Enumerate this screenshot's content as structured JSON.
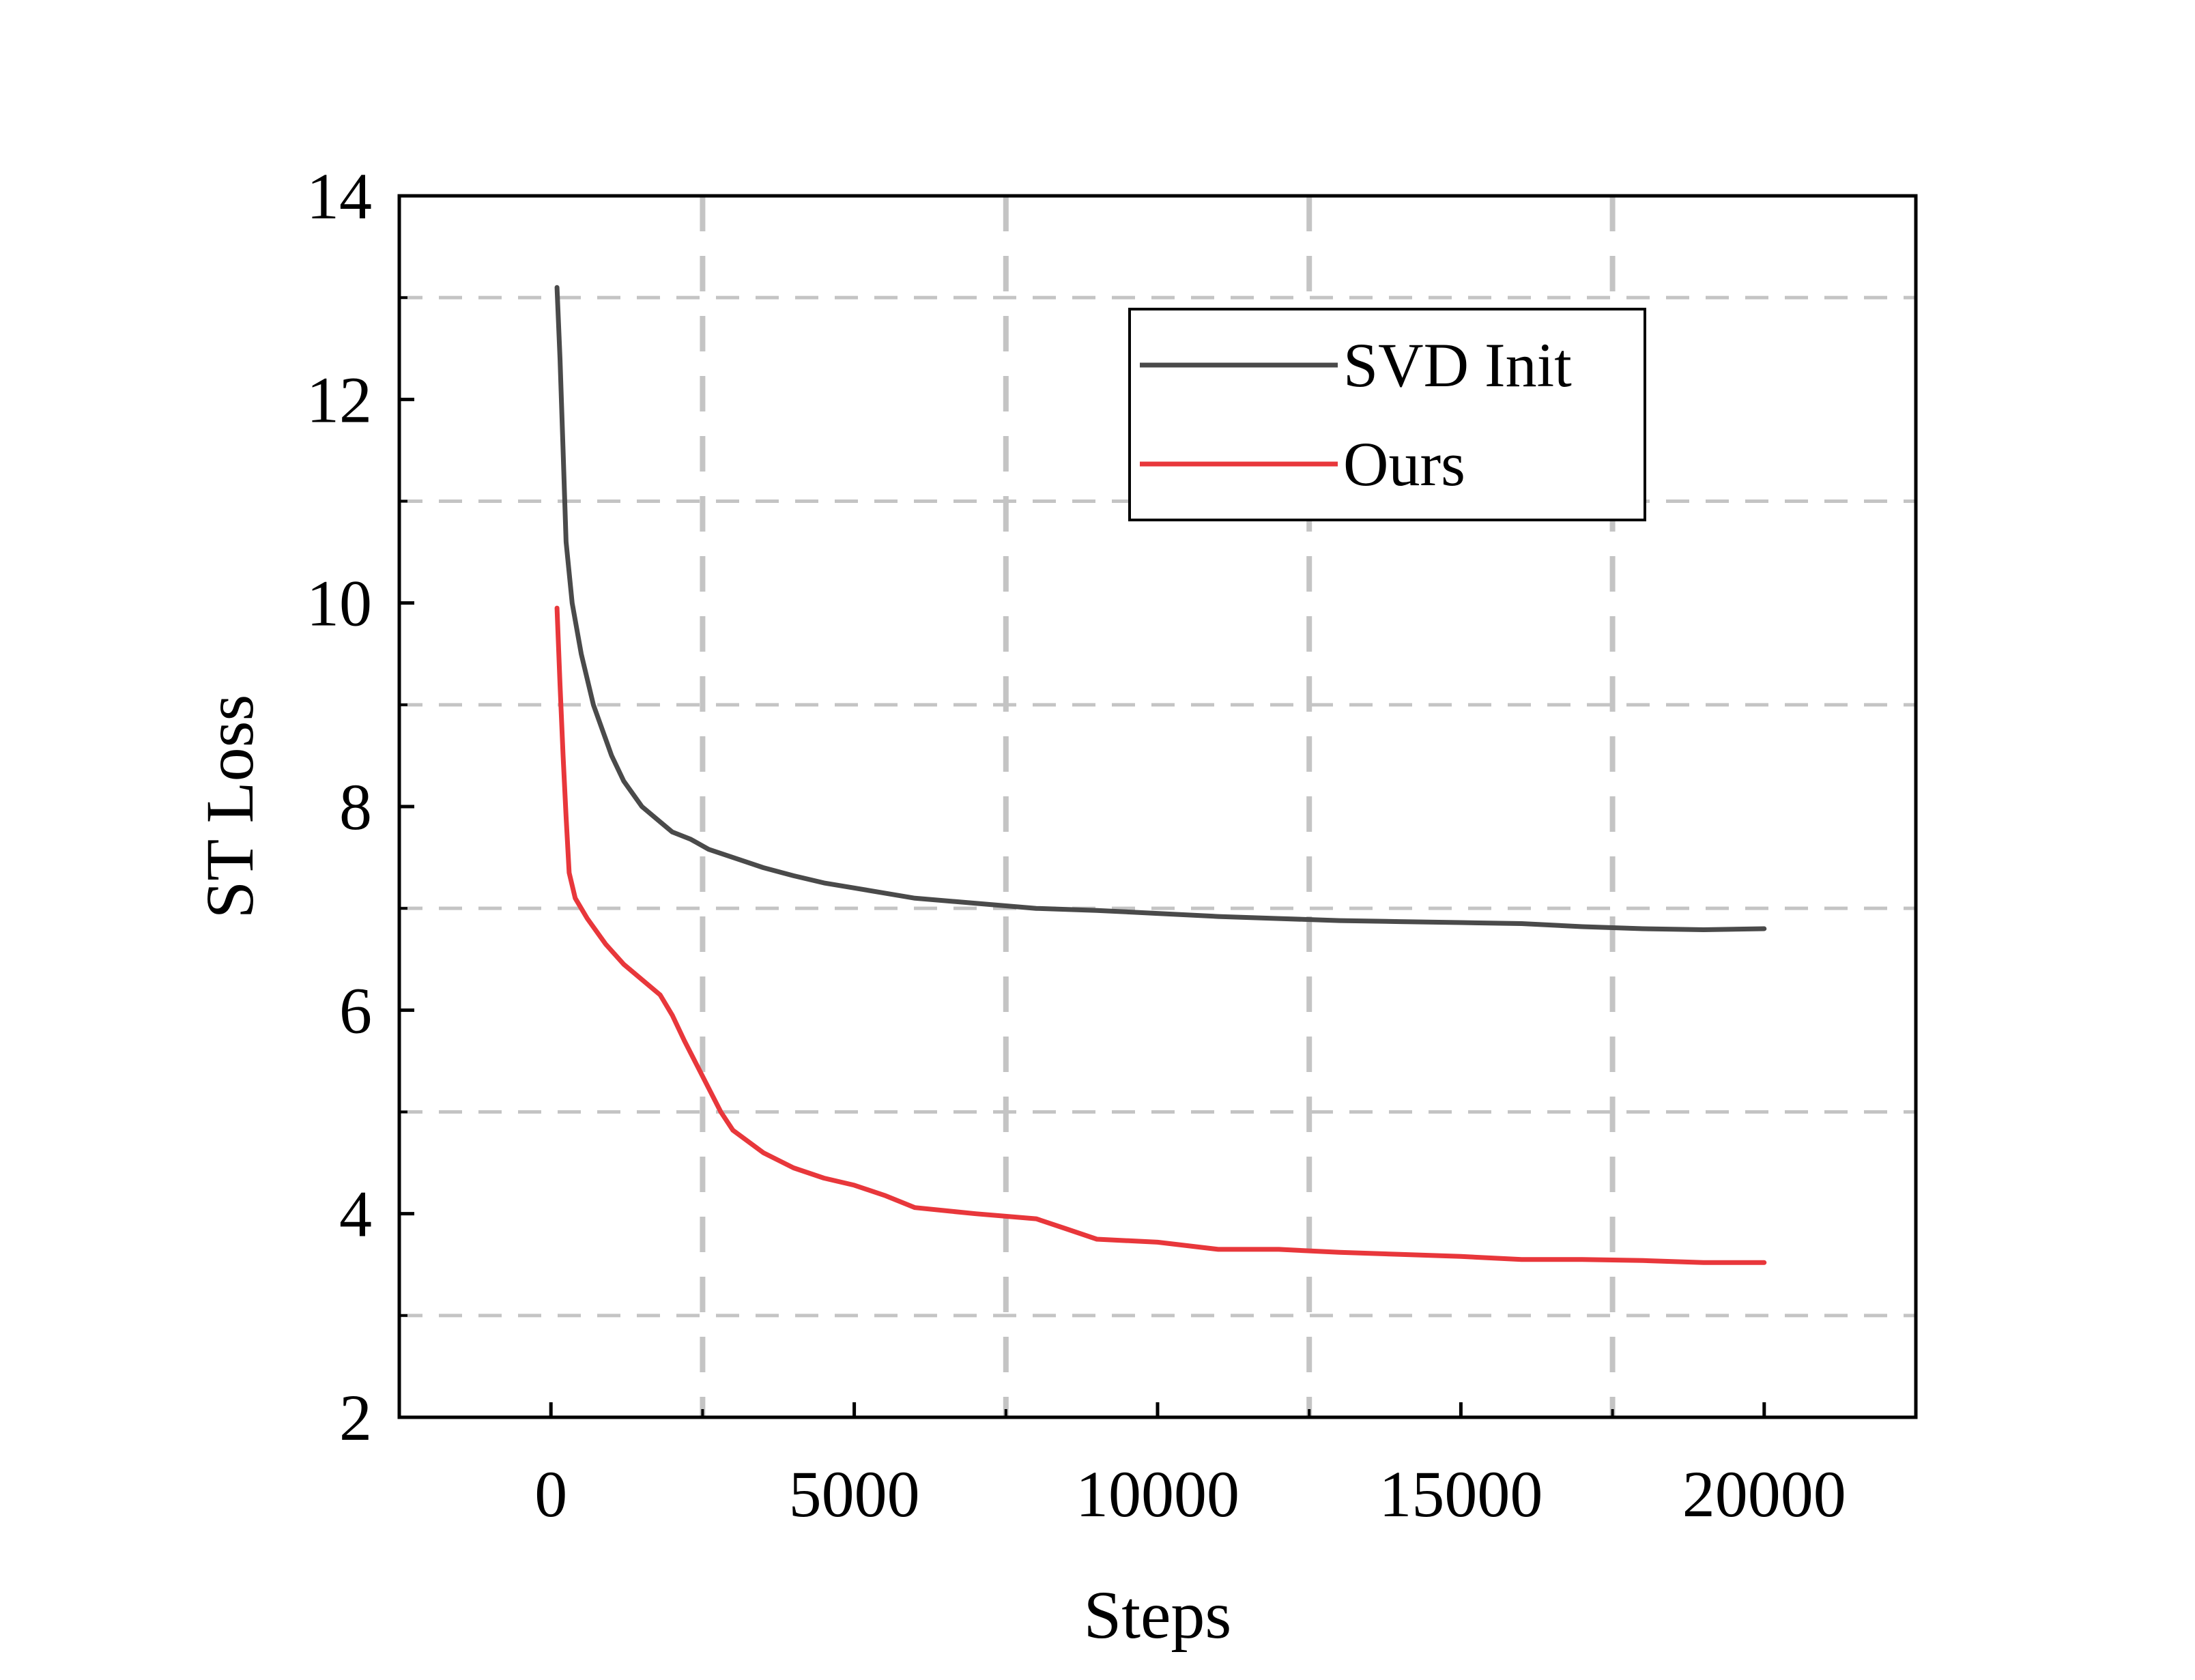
{
  "chart_data": {
    "type": "line",
    "title": "",
    "xlabel": "Steps",
    "ylabel": "ST Loss",
    "xlim": [
      -2500,
      22500
    ],
    "ylim": [
      2,
      14
    ],
    "xticks": [
      0,
      5000,
      10000,
      15000,
      20000
    ],
    "xtick_labels": [
      "0",
      "5000",
      "10000",
      "15000",
      "20000"
    ],
    "yticks": [
      2,
      4,
      6,
      8,
      10,
      12,
      14
    ],
    "ytick_labels": [
      "2",
      "4",
      "6",
      "8",
      "10",
      "12",
      "14"
    ],
    "grid": "dashed, minor ticks (x every 2500 offset, y every 1)",
    "legend_position": "top-right",
    "series": [
      {
        "name": "SVD Init",
        "color": "#4a4a4a",
        "points": [
          [
            100,
            13.1
          ],
          [
            150,
            12.4
          ],
          [
            200,
            11.5
          ],
          [
            250,
            10.6
          ],
          [
            350,
            10.0
          ],
          [
            500,
            9.5
          ],
          [
            700,
            9.0
          ],
          [
            1000,
            8.5
          ],
          [
            1200,
            8.25
          ],
          [
            1500,
            8.0
          ],
          [
            1800,
            7.85
          ],
          [
            2000,
            7.75
          ],
          [
            2300,
            7.68
          ],
          [
            2600,
            7.58
          ],
          [
            3000,
            7.5
          ],
          [
            3500,
            7.4
          ],
          [
            4000,
            7.32
          ],
          [
            4500,
            7.25
          ],
          [
            5000,
            7.2
          ],
          [
            5500,
            7.15
          ],
          [
            6000,
            7.1
          ],
          [
            7000,
            7.05
          ],
          [
            8000,
            7.0
          ],
          [
            9000,
            6.98
          ],
          [
            10000,
            6.95
          ],
          [
            11000,
            6.92
          ],
          [
            12000,
            6.9
          ],
          [
            13000,
            6.88
          ],
          [
            14000,
            6.87
          ],
          [
            15000,
            6.86
          ],
          [
            16000,
            6.85
          ],
          [
            17000,
            6.82
          ],
          [
            18000,
            6.8
          ],
          [
            19000,
            6.79
          ],
          [
            20000,
            6.8
          ]
        ]
      },
      {
        "name": "Ours",
        "color": "#e8373b",
        "points": [
          [
            100,
            9.95
          ],
          [
            150,
            9.2
          ],
          [
            200,
            8.5
          ],
          [
            250,
            7.9
          ],
          [
            300,
            7.35
          ],
          [
            400,
            7.1
          ],
          [
            600,
            6.9
          ],
          [
            900,
            6.65
          ],
          [
            1200,
            6.45
          ],
          [
            1500,
            6.3
          ],
          [
            1800,
            6.15
          ],
          [
            2000,
            5.95
          ],
          [
            2200,
            5.7
          ],
          [
            2500,
            5.35
          ],
          [
            2800,
            5.0
          ],
          [
            3000,
            4.82
          ],
          [
            3500,
            4.6
          ],
          [
            4000,
            4.45
          ],
          [
            4500,
            4.35
          ],
          [
            5000,
            4.28
          ],
          [
            5500,
            4.18
          ],
          [
            6000,
            4.06
          ],
          [
            7000,
            4.0
          ],
          [
            8000,
            3.95
          ],
          [
            8500,
            3.85
          ],
          [
            9000,
            3.75
          ],
          [
            10000,
            3.72
          ],
          [
            11000,
            3.65
          ],
          [
            12000,
            3.65
          ],
          [
            13000,
            3.62
          ],
          [
            14000,
            3.6
          ],
          [
            15000,
            3.58
          ],
          [
            16000,
            3.55
          ],
          [
            17000,
            3.55
          ],
          [
            18000,
            3.54
          ],
          [
            19000,
            3.52
          ],
          [
            20000,
            3.52
          ]
        ]
      }
    ]
  }
}
